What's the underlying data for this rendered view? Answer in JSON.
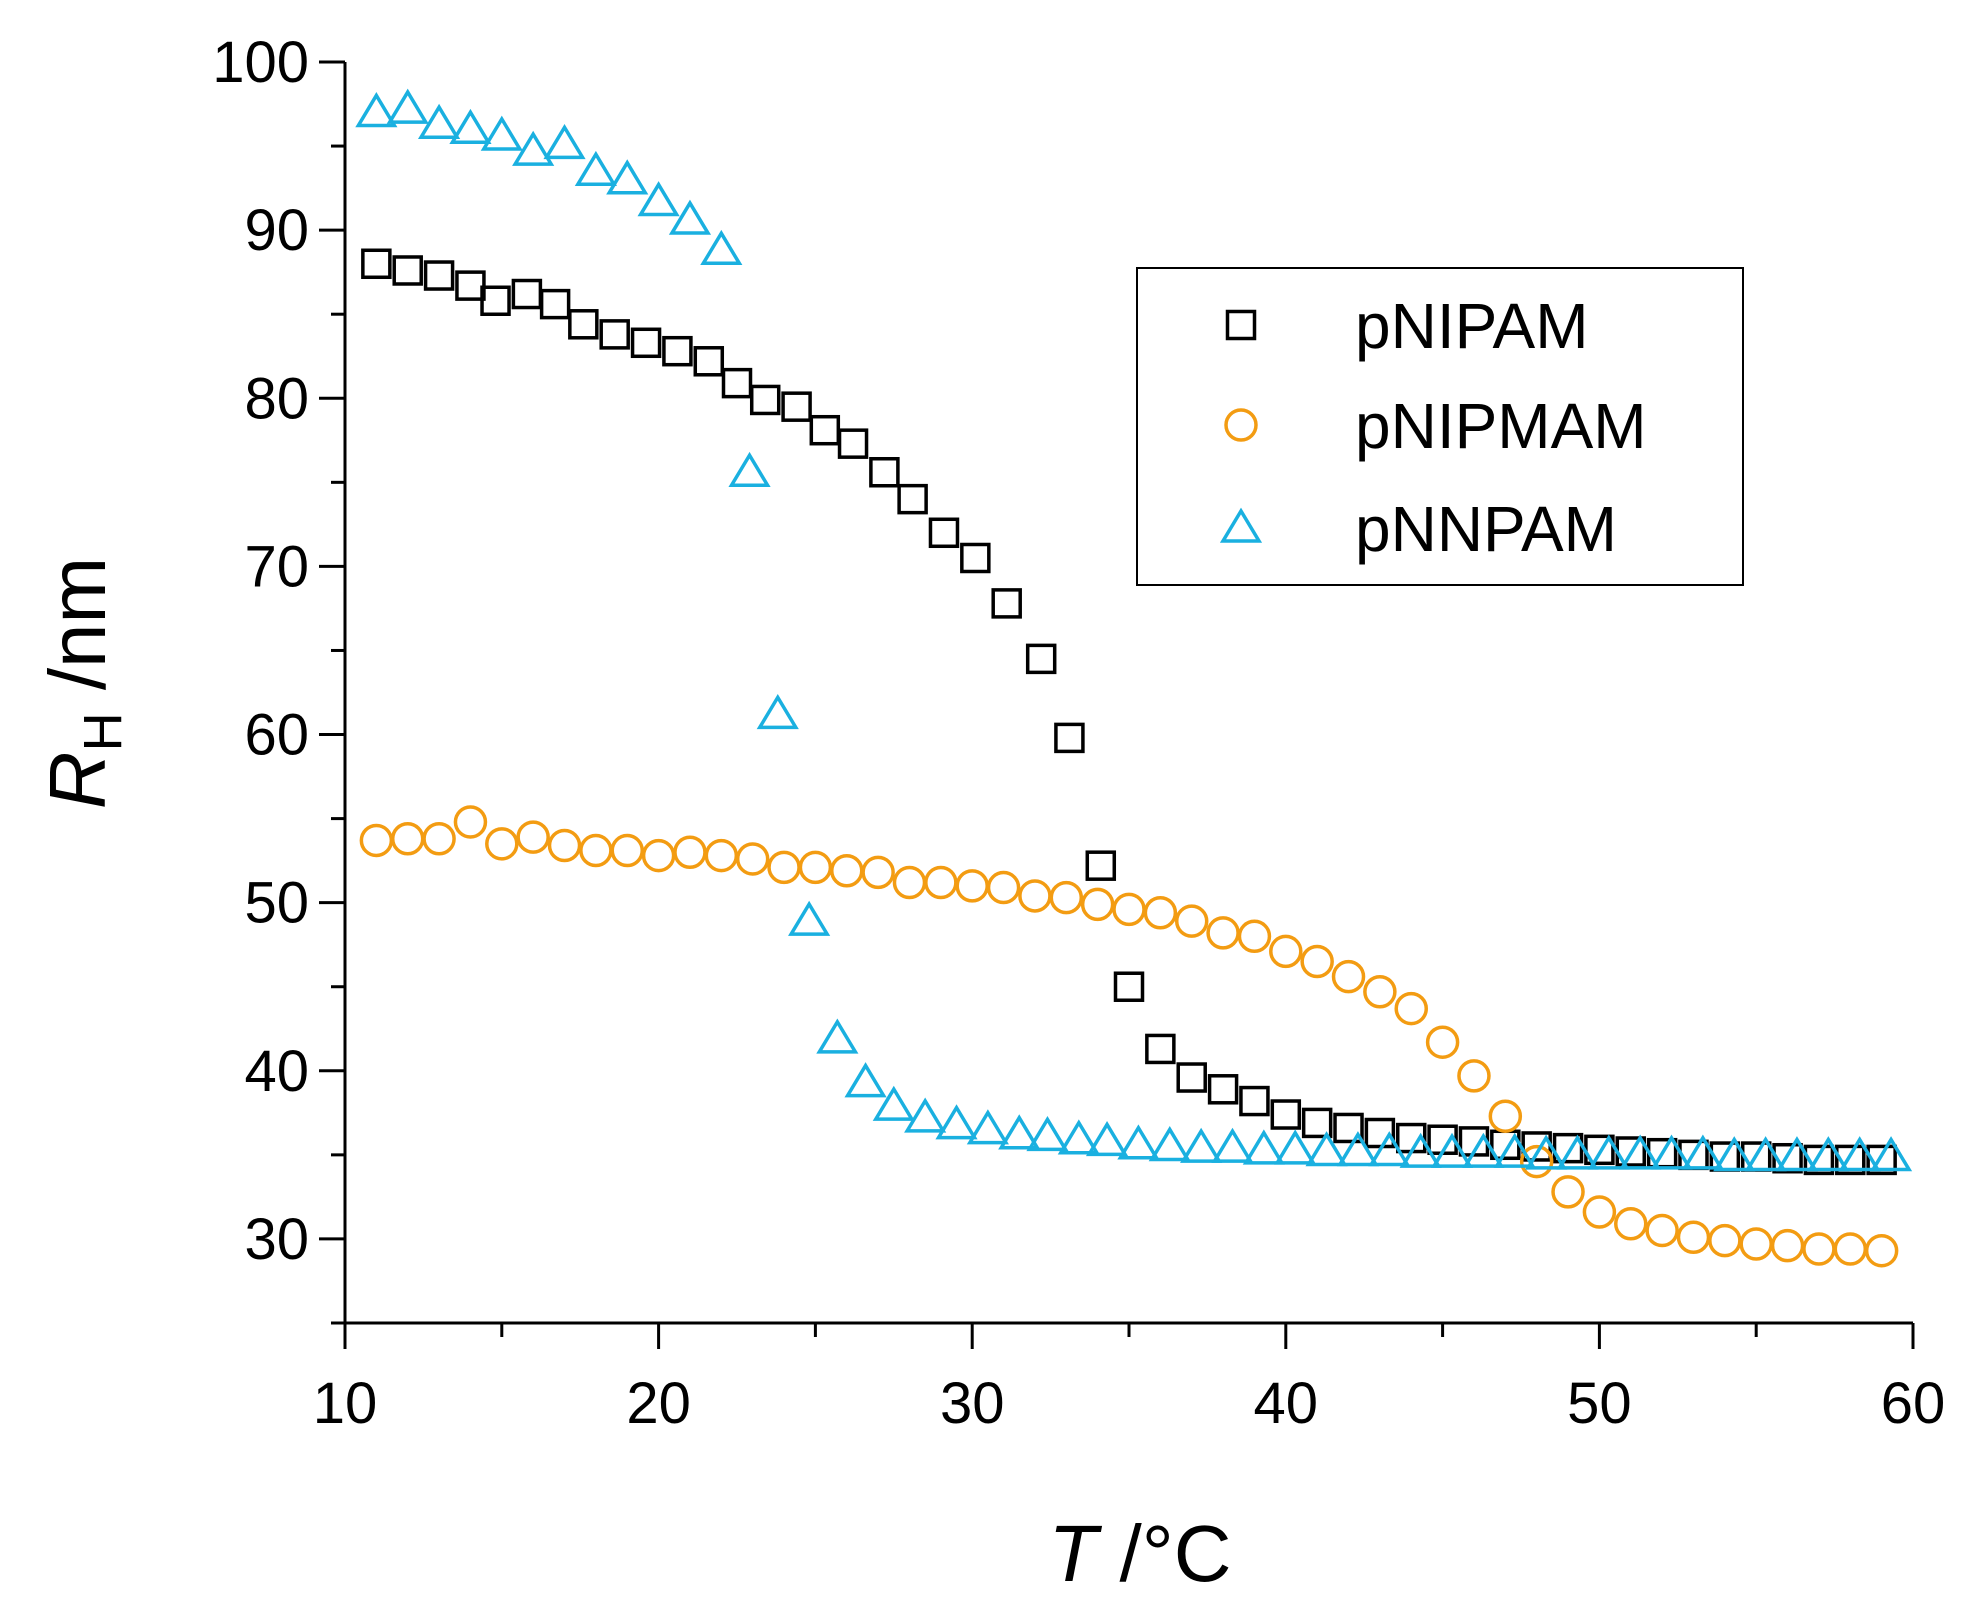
{
  "chart_data": {
    "type": "scatter",
    "xlabel": {
      "italic": "T",
      "rest": " /°C"
    },
    "ylabel": {
      "italic": "R",
      "sub": "H",
      "rest": " /nm"
    },
    "xlim": [
      10,
      60
    ],
    "ylim": [
      25,
      100
    ],
    "xticks": [
      10,
      20,
      30,
      40,
      50,
      60
    ],
    "yticks": [
      30,
      40,
      50,
      60,
      70,
      80,
      90,
      100
    ],
    "xtick_labels": [
      "10",
      "20",
      "30",
      "40",
      "50",
      "60"
    ],
    "ytick_labels": [
      "30",
      "40",
      "50",
      "60",
      "70",
      "80",
      "90",
      "100"
    ],
    "x_minor_step": 5,
    "y_minor_step": 5,
    "grid": false,
    "legend_position": "top-right",
    "series": [
      {
        "name": "pNIPAM",
        "marker": "square",
        "color": "#000000",
        "x": [
          11.0,
          12.0,
          13.0,
          14.0,
          14.8,
          15.8,
          16.7,
          17.6,
          18.6,
          19.6,
          20.6,
          21.6,
          22.5,
          23.4,
          24.4,
          25.3,
          26.2,
          27.2,
          28.1,
          29.1,
          30.1,
          31.1,
          32.2,
          33.1,
          34.1,
          35.0,
          36.0,
          37.0,
          38.0,
          39.0,
          40.0,
          41.0,
          42.0,
          43.0,
          44.0,
          45.0,
          46.0,
          47.0,
          48.0,
          49.0,
          50.0,
          51.0,
          52.0,
          53.0,
          54.0,
          55.0,
          56.0,
          57.0,
          58.0,
          59.0
        ],
        "y": [
          88.0,
          87.6,
          87.3,
          86.7,
          85.8,
          86.2,
          85.6,
          84.4,
          83.8,
          83.3,
          82.8,
          82.2,
          80.9,
          79.9,
          79.5,
          78.1,
          77.3,
          75.6,
          74.0,
          72.0,
          70.5,
          67.8,
          64.5,
          59.8,
          52.2,
          45.0,
          41.3,
          39.6,
          38.9,
          38.2,
          37.4,
          36.9,
          36.6,
          36.3,
          36.0,
          35.9,
          35.8,
          35.6,
          35.5,
          35.4,
          35.3,
          35.2,
          35.1,
          35.0,
          34.9,
          34.9,
          34.8,
          34.7,
          34.7,
          34.7
        ]
      },
      {
        "name": "pNIPMAM",
        "marker": "circle",
        "color": "#f39c12",
        "x": [
          11.0,
          12.0,
          13.0,
          14.0,
          15.0,
          16.0,
          17.0,
          18.0,
          19.0,
          20.0,
          21.0,
          22.0,
          23.0,
          24.0,
          25.0,
          26.0,
          27.0,
          28.0,
          29.0,
          30.0,
          31.0,
          32.0,
          33.0,
          34.0,
          35.0,
          36.0,
          37.0,
          38.0,
          39.0,
          40.0,
          41.0,
          42.0,
          43.0,
          44.0,
          45.0,
          46.0,
          47.0,
          48.0,
          49.0,
          50.0,
          51.0,
          52.0,
          53.0,
          54.0,
          55.0,
          56.0,
          57.0,
          58.0,
          59.0
        ],
        "y": [
          53.7,
          53.8,
          53.8,
          54.8,
          53.5,
          53.9,
          53.4,
          53.1,
          53.1,
          52.8,
          53.0,
          52.8,
          52.6,
          52.1,
          52.1,
          51.9,
          51.8,
          51.2,
          51.2,
          51.0,
          50.9,
          50.4,
          50.3,
          49.9,
          49.6,
          49.4,
          48.9,
          48.2,
          48.0,
          47.1,
          46.5,
          45.6,
          44.7,
          43.7,
          41.7,
          39.7,
          37.3,
          34.6,
          32.8,
          31.6,
          30.9,
          30.5,
          30.1,
          29.9,
          29.7,
          29.6,
          29.4,
          29.4,
          29.3
        ]
      },
      {
        "name": "pNNPAM",
        "marker": "triangle",
        "color": "#1ab0e0",
        "x": [
          11.0,
          12.0,
          13.0,
          14.0,
          15.0,
          16.0,
          17.0,
          18.0,
          19.0,
          20.0,
          21.0,
          22.0,
          22.9,
          23.8,
          24.8,
          25.7,
          26.6,
          27.5,
          28.5,
          29.5,
          30.5,
          31.5,
          32.4,
          33.4,
          34.3,
          35.3,
          36.3,
          37.3,
          38.3,
          39.3,
          40.3,
          41.3,
          42.3,
          43.3,
          44.3,
          45.3,
          46.3,
          47.3,
          48.3,
          49.3,
          50.3,
          51.3,
          52.3,
          53.3,
          54.3,
          55.3,
          56.3,
          57.3,
          58.3,
          59.3
        ],
        "y": [
          97.0,
          97.2,
          96.3,
          96.0,
          95.6,
          94.7,
          95.1,
          93.5,
          93.0,
          91.7,
          90.6,
          88.8,
          75.6,
          61.2,
          48.9,
          41.9,
          39.3,
          37.9,
          37.2,
          36.8,
          36.5,
          36.2,
          36.1,
          35.9,
          35.8,
          35.6,
          35.5,
          35.4,
          35.4,
          35.3,
          35.3,
          35.2,
          35.2,
          35.2,
          35.1,
          35.1,
          35.1,
          35.1,
          35.0,
          35.0,
          35.0,
          35.0,
          35.0,
          35.0,
          34.9,
          34.9,
          34.9,
          34.9,
          34.9,
          34.9
        ]
      }
    ]
  }
}
